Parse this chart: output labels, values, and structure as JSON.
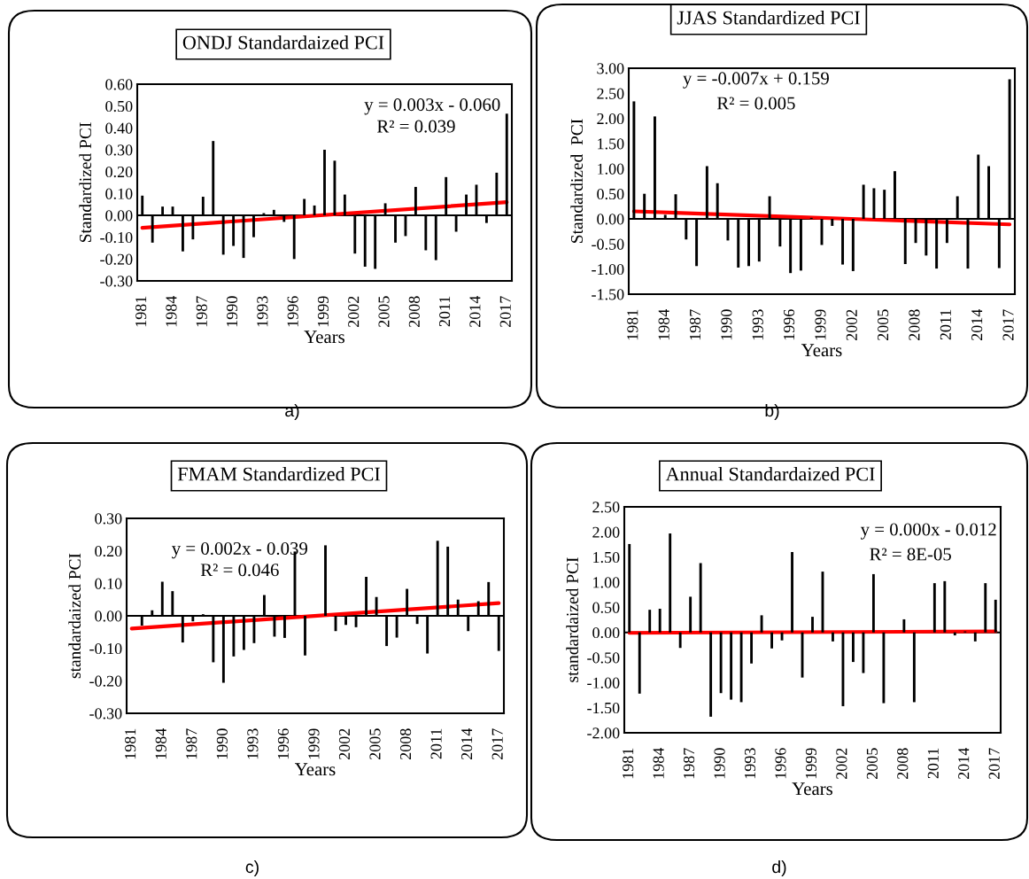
{
  "chart_data": [
    {
      "type": "bar",
      "title": "ONDJ Standardaized PCI",
      "xlabel": "Years",
      "ylabel": "Standardized PCI",
      "categories": [
        "1981",
        null,
        null,
        "1984",
        null,
        null,
        "1987",
        null,
        null,
        "1990",
        null,
        null,
        "1993",
        null,
        null,
        "1996",
        null,
        null,
        "1999",
        null,
        null,
        "2002",
        null,
        null,
        "2005",
        null,
        null,
        "2008",
        null,
        null,
        "2011",
        null,
        null,
        "2014",
        null,
        null,
        "2017"
      ],
      "series": [
        {
          "color": "#000000",
          "values": [
            0.09,
            -0.125,
            0.04,
            0.04,
            -0.165,
            -0.11,
            0.085,
            0.34,
            -0.18,
            -0.14,
            -0.195,
            -0.1,
            0.01,
            0.025,
            -0.03,
            -0.2,
            0.075,
            0.045,
            0.3,
            0.25,
            0.095,
            -0.175,
            -0.235,
            -0.245,
            0.055,
            -0.125,
            -0.095,
            0.13,
            -0.16,
            -0.205,
            0.175,
            -0.075,
            0.095,
            0.14,
            -0.035,
            0.195,
            0.465
          ]
        },
        {
          "type": "line",
          "color": "#ff0000",
          "values": [
            -0.057,
            null,
            null,
            null,
            null,
            null,
            null,
            null,
            null,
            null,
            null,
            null,
            null,
            null,
            null,
            null,
            null,
            null,
            null,
            null,
            null,
            null,
            null,
            null,
            null,
            null,
            null,
            null,
            null,
            null,
            null,
            null,
            null,
            null,
            null,
            null,
            0.06
          ]
        }
      ],
      "ylim": [
        -0.3,
        0.6
      ],
      "yticks": [
        {
          "value": -0.3,
          "label": "-0.30"
        },
        {
          "value": -0.2,
          "label": "-0.20"
        },
        {
          "value": -0.1,
          "label": "-0.10"
        },
        {
          "value": 0,
          "label": "0.00"
        },
        {
          "value": 0.1,
          "label": "0.10"
        },
        {
          "value": 0.2,
          "label": "0.20"
        },
        {
          "value": 0.3,
          "label": "0.30"
        },
        {
          "value": 0.4,
          "label": "0.40"
        },
        {
          "value": 0.5,
          "label": "0.50"
        },
        {
          "value": 0.6,
          "label": "0.60"
        }
      ],
      "annotations": [
        "y = 0.003x - 0.060",
        "R² = 0.039",
        "a)"
      ]
    },
    {
      "type": "bar",
      "title": "JJAS Standardized PCI",
      "xlabel": "Years",
      "ylabel": "Standardized  PCI",
      "categories": [
        "1981",
        null,
        null,
        "1984",
        null,
        null,
        "1987",
        null,
        null,
        "1990",
        null,
        null,
        "1993",
        null,
        null,
        "1996",
        null,
        null,
        "1999",
        null,
        null,
        "2002",
        null,
        null,
        "2005",
        null,
        null,
        "2008",
        null,
        null,
        "2011",
        null,
        null,
        "2014",
        null,
        null,
        "2017"
      ],
      "series": [
        {
          "color": "#000000",
          "values": [
            2.34,
            0.5,
            2.04,
            0.08,
            0.49,
            -0.41,
            -0.94,
            1.05,
            0.71,
            -0.43,
            -0.97,
            -0.94,
            -0.85,
            0.45,
            -0.55,
            -1.08,
            -1.03,
            0.02,
            -0.52,
            -0.14,
            -0.91,
            -1.04,
            0.68,
            0.61,
            0.58,
            0.95,
            -0.9,
            -0.48,
            -0.73,
            -0.99,
            -0.48,
            0.45,
            -0.99,
            1.28,
            1.05,
            -0.98,
            2.78
          ]
        },
        {
          "type": "line",
          "color": "#ff0000",
          "values": [
            0.15,
            null,
            null,
            null,
            null,
            null,
            null,
            null,
            null,
            null,
            null,
            null,
            null,
            null,
            null,
            null,
            null,
            null,
            null,
            null,
            null,
            null,
            null,
            null,
            null,
            null,
            null,
            null,
            null,
            null,
            null,
            null,
            null,
            null,
            null,
            null,
            -0.11
          ]
        }
      ],
      "ylim": [
        -1.5,
        3.0
      ],
      "yticks": [
        {
          "value": -1.5,
          "label": "-1.50"
        },
        {
          "value": -1.0,
          "label": "-1.00"
        },
        {
          "value": -0.5,
          "label": "-0.50"
        },
        {
          "value": 0,
          "label": "0.00"
        },
        {
          "value": 0.5,
          "label": "0.50"
        },
        {
          "value": 1.0,
          "label": "1.00"
        },
        {
          "value": 1.5,
          "label": "1.50"
        },
        {
          "value": 2.0,
          "label": "2.00"
        },
        {
          "value": 2.5,
          "label": "2.50"
        },
        {
          "value": 3.0,
          "label": "3.00"
        }
      ],
      "annotations": [
        "y = -0.007x + 0.159",
        "R² = 0.005",
        "b)"
      ]
    },
    {
      "type": "bar",
      "title": "FMAM Standardized PCI",
      "xlabel": "Years",
      "ylabel": "standardaized PCI",
      "categories": [
        "1981",
        null,
        null,
        "1984",
        null,
        null,
        "1987",
        null,
        null,
        "1990",
        null,
        null,
        "1993",
        null,
        null,
        "1996",
        null,
        null,
        "1999",
        null,
        null,
        "2002",
        null,
        null,
        "2005",
        null,
        null,
        "2008",
        null,
        null,
        "2011",
        null,
        null,
        "2014",
        null,
        null,
        "2017"
      ],
      "series": [
        {
          "color": "#000000",
          "values": [
            0.0,
            -0.03,
            0.017,
            0.105,
            0.076,
            -0.082,
            -0.017,
            0.005,
            -0.143,
            -0.206,
            -0.125,
            -0.105,
            -0.084,
            0.064,
            -0.064,
            -0.068,
            0.198,
            -0.122,
            null,
            0.217,
            -0.047,
            -0.028,
            -0.035,
            0.12,
            0.058,
            -0.093,
            -0.067,
            0.083,
            -0.025,
            -0.116,
            0.231,
            0.213,
            0.05,
            -0.047,
            0.045,
            0.104,
            -0.108
          ]
        },
        {
          "type": "line",
          "color": "#ff0000",
          "values": [
            -0.039,
            null,
            null,
            null,
            null,
            null,
            null,
            null,
            null,
            null,
            null,
            null,
            null,
            null,
            null,
            null,
            null,
            null,
            null,
            null,
            null,
            null,
            null,
            null,
            null,
            null,
            null,
            null,
            null,
            null,
            null,
            null,
            null,
            null,
            null,
            null,
            0.039
          ]
        }
      ],
      "ylim": [
        -0.3,
        0.3
      ],
      "yticks": [
        {
          "value": -0.3,
          "label": "-0.30"
        },
        {
          "value": -0.2,
          "label": "-0.20"
        },
        {
          "value": -0.1,
          "label": "-0.10"
        },
        {
          "value": 0,
          "label": "0.00"
        },
        {
          "value": 0.1,
          "label": "0.10"
        },
        {
          "value": 0.2,
          "label": "0.20"
        },
        {
          "value": 0.3,
          "label": "0.30"
        }
      ],
      "annotations": [
        "y = 0.002x - 0.039",
        "R² = 0.046",
        "c)"
      ]
    },
    {
      "type": "bar",
      "title": "Annual Standardaized PCI",
      "xlabel": "Years",
      "ylabel": "standardaized PCI",
      "categories": [
        "1981",
        null,
        null,
        "1984",
        null,
        null,
        "1987",
        null,
        null,
        "1990",
        null,
        null,
        "1993",
        null,
        null,
        "1996",
        null,
        null,
        "1999",
        null,
        null,
        "2002",
        null,
        null,
        "2005",
        null,
        null,
        "2008",
        null,
        null,
        "2011",
        null,
        null,
        "2014",
        null,
        null,
        "2017"
      ],
      "series": [
        {
          "color": "#000000",
          "values": [
            1.76,
            -1.22,
            0.45,
            0.47,
            1.97,
            -0.31,
            0.71,
            1.38,
            -1.68,
            -1.21,
            -1.34,
            -1.39,
            -0.62,
            0.34,
            -0.32,
            -0.16,
            1.6,
            -0.9,
            0.31,
            1.21,
            -0.18,
            -1.47,
            -0.59,
            -0.81,
            1.16,
            -1.41,
            null,
            0.26,
            -1.39,
            0.0,
            0.98,
            1.02,
            -0.06,
            0.02,
            -0.18,
            0.98,
            0.65
          ]
        },
        {
          "type": "line",
          "color": "#ff0000",
          "values": [
            -0.01,
            null,
            null,
            null,
            null,
            null,
            null,
            null,
            null,
            null,
            null,
            null,
            null,
            null,
            null,
            null,
            null,
            null,
            null,
            null,
            null,
            null,
            null,
            null,
            null,
            null,
            null,
            null,
            null,
            null,
            null,
            null,
            null,
            null,
            null,
            null,
            0.02
          ]
        }
      ],
      "ylim": [
        -2.0,
        2.5
      ],
      "yticks": [
        {
          "value": -2.0,
          "label": "-2.00"
        },
        {
          "value": -1.5,
          "label": "-1.50"
        },
        {
          "value": -1.0,
          "label": "-1.00"
        },
        {
          "value": -0.5,
          "label": "-0.50"
        },
        {
          "value": 0,
          "label": "0.00"
        },
        {
          "value": 0.5,
          "label": "0.50"
        },
        {
          "value": 1.0,
          "label": "1.00"
        },
        {
          "value": 1.5,
          "label": "1.50"
        },
        {
          "value": 2.0,
          "label": "2.00"
        },
        {
          "value": 2.5,
          "label": "2.50"
        }
      ],
      "annotations": [
        "y = 0.000x - 0.012",
        "R² = 8E-05",
        "d)"
      ]
    }
  ]
}
